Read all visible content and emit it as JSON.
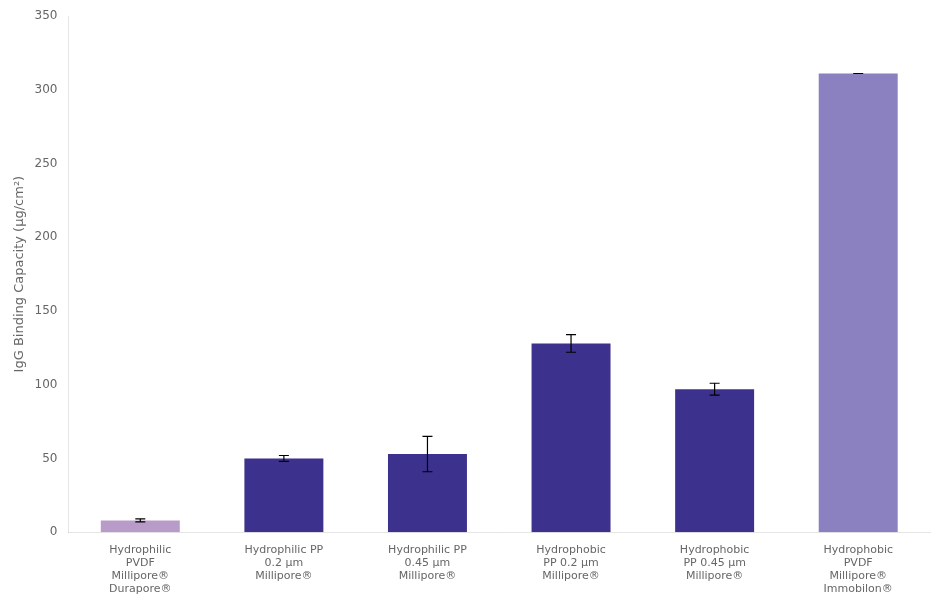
{
  "chart_data": {
    "type": "bar",
    "categories": [
      "Hydrophilic\nPVDF\nMillipore®\nDurapore®",
      "Hydrophilic PP\n0.2 μm\nMillipore®",
      "Hydrophilic PP\n0.45 μm\nMillipore®",
      "Hydrophobic\nPP 0.2 μm\nMillipore®",
      "Hydrophobic\nPP 0.45 μm\nMillipore®",
      "Hydrophobic\nPVDF\nMillipore®\nImmobilon®"
    ],
    "values": [
      8,
      50,
      53,
      128,
      97,
      311
    ],
    "errors": [
      1,
      2,
      12,
      6,
      4,
      0
    ],
    "colors": [
      "#b89bc8",
      "#3d318e",
      "#3d318e",
      "#3d318e",
      "#3d318e",
      "#8b80c0"
    ],
    "ylabel": "IgG Binding Capacity (μg/cm²)",
    "ylim": [
      0,
      350
    ],
    "yticks": [
      0,
      50,
      100,
      150,
      200,
      250,
      300,
      350
    ],
    "grid": false
  }
}
